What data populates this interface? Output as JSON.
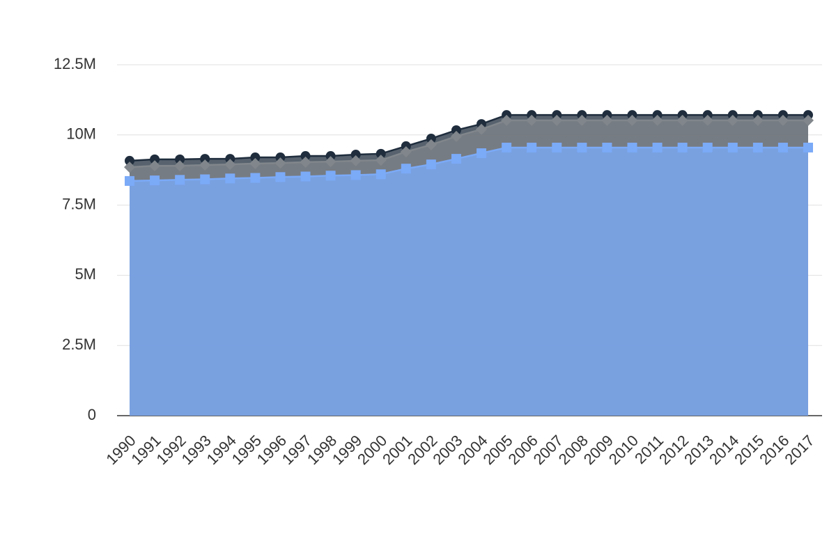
{
  "chart_data": {
    "type": "area",
    "stacked": false,
    "grid": true,
    "categories": [
      "1990",
      "1991",
      "1992",
      "1993",
      "1994",
      "1995",
      "1996",
      "1997",
      "1998",
      "1999",
      "2000",
      "2001",
      "2002",
      "2003",
      "2004",
      "2005",
      "2006",
      "2007",
      "2008",
      "2009",
      "2010",
      "2011",
      "2012",
      "2013",
      "2014",
      "2015",
      "2016",
      "2017"
    ],
    "series": [
      {
        "color": "#1f2d3d",
        "marker": "circle",
        "values": [
          9080000,
          9130000,
          9130000,
          9150000,
          9150000,
          9200000,
          9200000,
          9250000,
          9250000,
          9300000,
          9330000,
          9600000,
          9870000,
          10170000,
          10390000,
          10710000,
          10710000,
          10710000,
          10710000,
          10710000,
          10710000,
          10710000,
          10710000,
          10710000,
          10710000,
          10710000,
          10710000,
          10710000
        ]
      },
      {
        "color": "#80868b",
        "marker": "diamond",
        "values": [
          8850000,
          8900000,
          8900000,
          8930000,
          8950000,
          8980000,
          9000000,
          9030000,
          9050000,
          9080000,
          9100000,
          9400000,
          9650000,
          9950000,
          10200000,
          10520000,
          10520000,
          10520000,
          10520000,
          10520000,
          10520000,
          10520000,
          10520000,
          10520000,
          10520000,
          10520000,
          10520000,
          10520000
        ]
      },
      {
        "color": "#7baaf7",
        "marker": "square",
        "values": [
          8360000,
          8380000,
          8400000,
          8420000,
          8450000,
          8470000,
          8500000,
          8520000,
          8550000,
          8570000,
          8600000,
          8800000,
          8950000,
          9150000,
          9350000,
          9550000,
          9550000,
          9550000,
          9550000,
          9550000,
          9550000,
          9550000,
          9550000,
          9550000,
          9550000,
          9550000,
          9550000,
          9550000
        ]
      }
    ],
    "ylim": [
      0,
      12500000
    ],
    "yticks": [
      0,
      {
        "value": 2500000,
        "label": "2.5M"
      },
      {
        "value": 5000000,
        "label": "5M"
      },
      {
        "value": 7500000,
        "label": "7.5M"
      },
      {
        "value": 10000000,
        "label": "10M"
      },
      {
        "value": 12500000,
        "label": "12.5M"
      }
    ]
  }
}
